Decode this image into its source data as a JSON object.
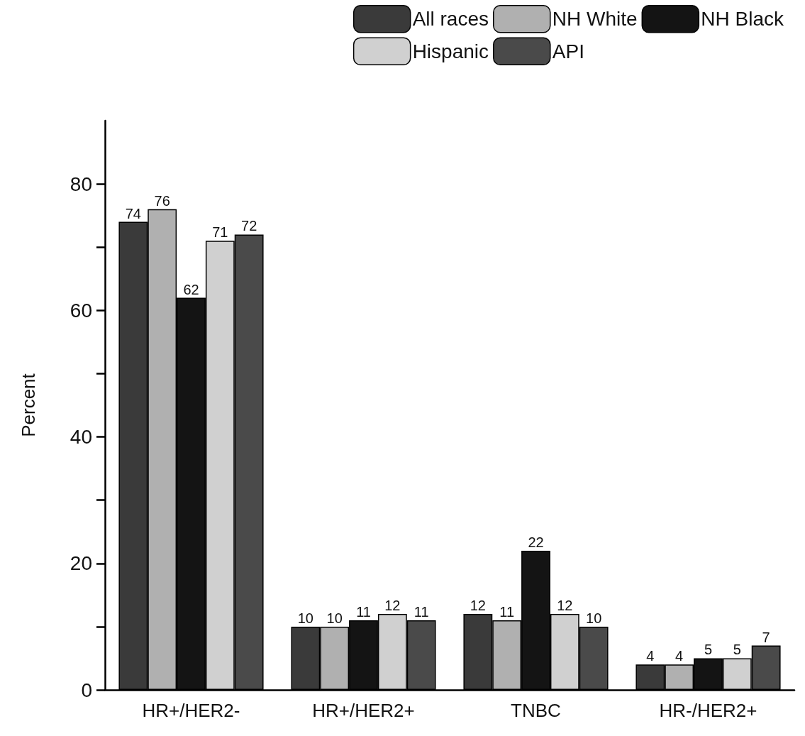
{
  "chart_data": {
    "type": "bar",
    "ylabel": "Percent",
    "categories": [
      "HR+/HER2-",
      "HR+/HER2+",
      "TNBC",
      "HR-/HER2+"
    ],
    "series": [
      {
        "name": "All races",
        "color": "#3a3a3a",
        "values": [
          74,
          10,
          12,
          4
        ]
      },
      {
        "name": "NH White",
        "color": "#b0b0b0",
        "values": [
          76,
          10,
          11,
          4
        ]
      },
      {
        "name": "NH Black",
        "color": "#141414",
        "values": [
          62,
          11,
          22,
          5
        ]
      },
      {
        "name": "Hispanic",
        "color": "#d0d0d0",
        "values": [
          71,
          12,
          12,
          5
        ]
      },
      {
        "name": "API",
        "color": "#4a4a4a",
        "values": [
          72,
          11,
          10,
          7
        ]
      }
    ],
    "ylim": [
      0,
      90
    ],
    "yticks": [
      0,
      {
        "value": 10,
        "label": null
      },
      20,
      {
        "value": 30,
        "label": null
      },
      40,
      {
        "value": 50,
        "label": null
      },
      60,
      {
        "value": 70,
        "label": null
      },
      80
    ],
    "data_labels": true,
    "legend": "top right",
    "grid": false
  }
}
